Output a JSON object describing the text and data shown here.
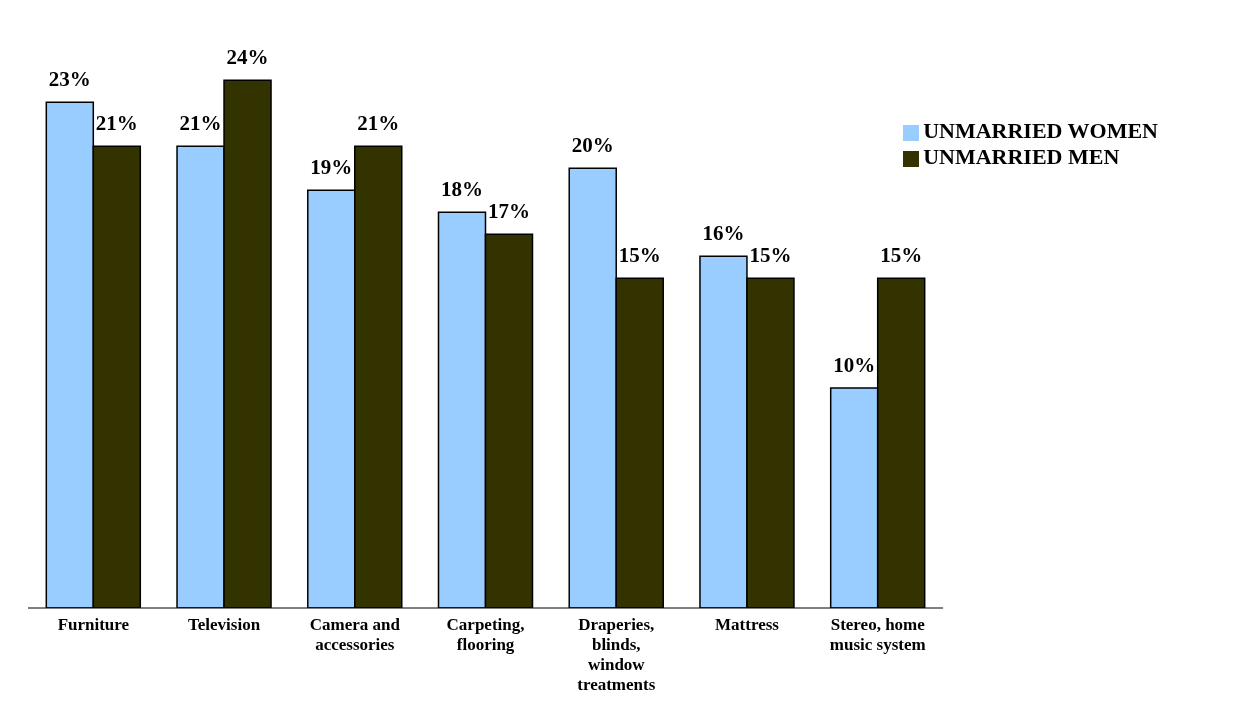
{
  "chart_data": {
    "type": "bar",
    "categories": [
      "Furniture",
      "Television",
      "Camera and accessories",
      "Carpeting, flooring",
      "Draperies, blinds, window treatments",
      "Mattress",
      "Stereo, home music system"
    ],
    "series": [
      {
        "name": "UNMARRIED WOMEN",
        "color": "#99ccff",
        "values": [
          23,
          21,
          19,
          18,
          20,
          16,
          10
        ],
        "value_labels": [
          "23%",
          "21%",
          "19%",
          "18%",
          "20%",
          "16%",
          "10%"
        ]
      },
      {
        "name": "UNMARRIED MEN",
        "color": "#333300",
        "values": [
          21,
          24,
          21,
          17,
          15,
          15,
          15
        ],
        "value_labels": [
          "21%",
          "24%",
          "21%",
          "17%",
          "15%",
          "15%",
          "15%"
        ]
      }
    ],
    "legend": "top right",
    "grid": false
  }
}
